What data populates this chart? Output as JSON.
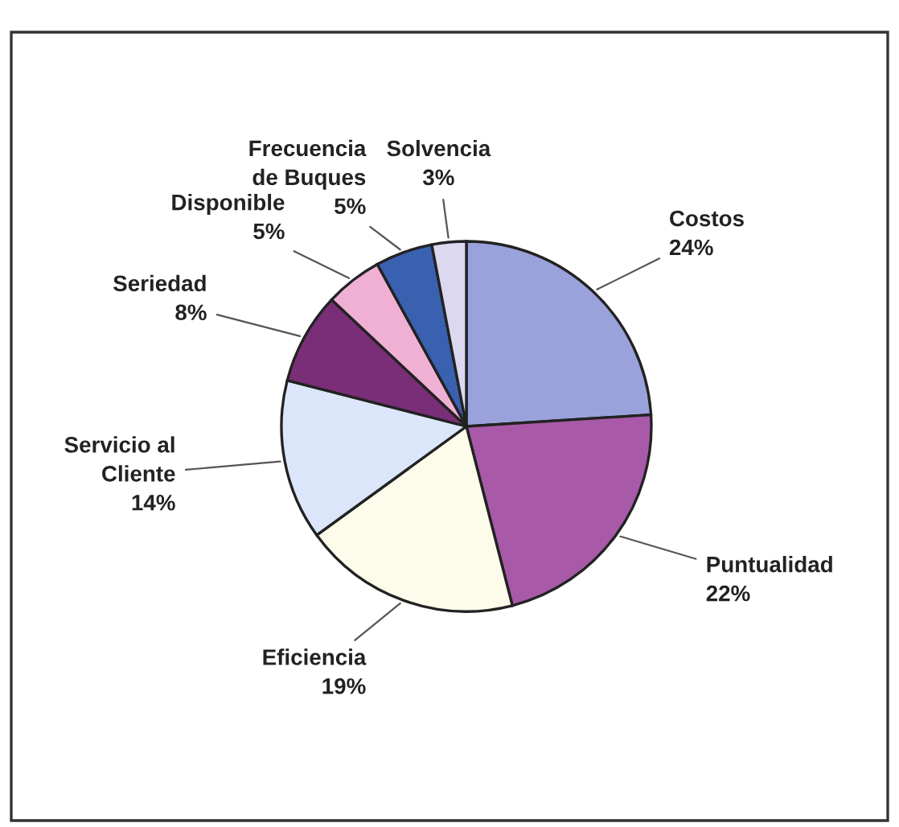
{
  "chart_data": {
    "type": "pie",
    "categories": [
      "Costos",
      "Puntualidad",
      "Eficiencia",
      "Servicio al\nCliente",
      "Seriedad",
      "Disponible",
      "Frecuencia\nde Buques",
      "Solvencia"
    ],
    "values": [
      24,
      22,
      19,
      14,
      8,
      5,
      5,
      3
    ],
    "value_labels": [
      "24%",
      "22%",
      "19%",
      "14%",
      "8%",
      "5%",
      "5%",
      "3%"
    ],
    "colors": [
      "#9aa2dc",
      "#a85aa8",
      "#fdfbea",
      "#dce6fa",
      "#7a2e78",
      "#f0b0d4",
      "#3a60b0",
      "#dcd8f0"
    ],
    "legend": false
  }
}
